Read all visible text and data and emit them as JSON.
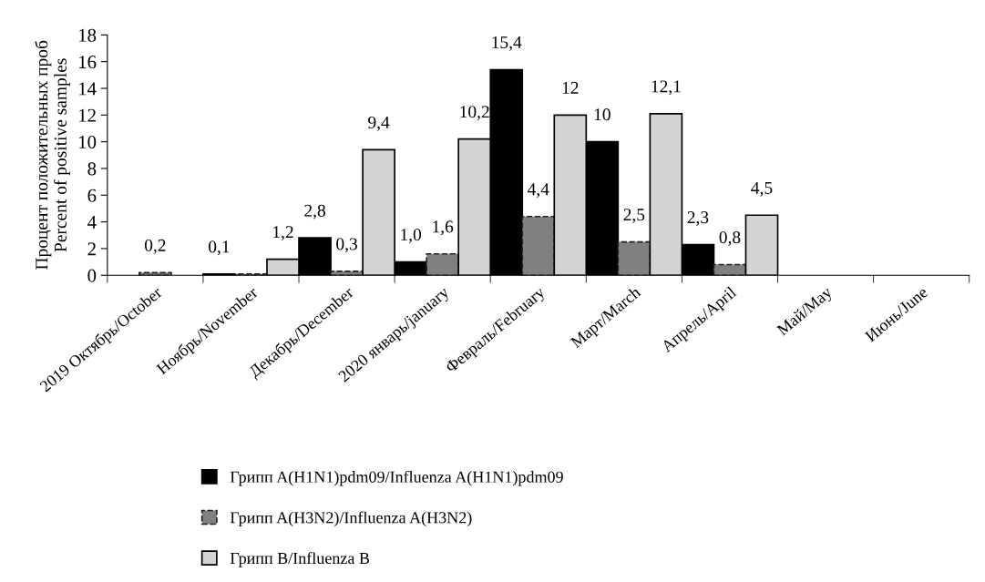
{
  "chart_data": {
    "type": "bar",
    "ylabel": "Процент положительных проб\nPercent of positive samples",
    "categories": [
      "2019 Октябрь/October",
      "Ноябрь/November",
      "Декабрь/December",
      "2020 январь/january",
      "Февраль/February",
      "Март/March",
      "Апрель/April",
      "Май/May",
      "Июнь/June"
    ],
    "series": [
      {
        "name": "Грипп A(H1N1)pdm09/Influenza A(H1N1)pdm09",
        "color": "#000000",
        "line_style": "solid",
        "values": [
          0,
          0.1,
          2.8,
          1.0,
          15.4,
          10,
          2.3,
          0,
          0
        ],
        "value_labels": [
          null,
          "0,1",
          "2,8",
          "1,0",
          "15,4",
          "10",
          "2,3",
          null,
          null
        ]
      },
      {
        "name": "Грипп A(H3N2)/Influenza A(H3N2)",
        "color": "#808080",
        "line_style": "dashed",
        "values": [
          0.2,
          0.1,
          0.3,
          1.6,
          4.4,
          2.5,
          0.8,
          0,
          0
        ],
        "value_labels": [
          "0,2",
          null,
          "0,3",
          "1,6",
          "4,4",
          "2,5",
          "0,8",
          null,
          null
        ]
      },
      {
        "name": "Грипп B/Influenza B",
        "color": "#d4d4d4",
        "line_style": "solid",
        "values": [
          0,
          1.2,
          9.4,
          10.2,
          12,
          12.1,
          4.5,
          0,
          0
        ],
        "value_labels": [
          null,
          "1,2",
          "9,4",
          "10,2",
          "12",
          "12,1",
          "4,5",
          null,
          null
        ]
      }
    ],
    "ylim": [
      0,
      18
    ],
    "yticks": [
      0,
      2,
      4,
      6,
      8,
      10,
      12,
      14,
      16,
      18
    ],
    "grid": false,
    "legend": "bottom"
  }
}
